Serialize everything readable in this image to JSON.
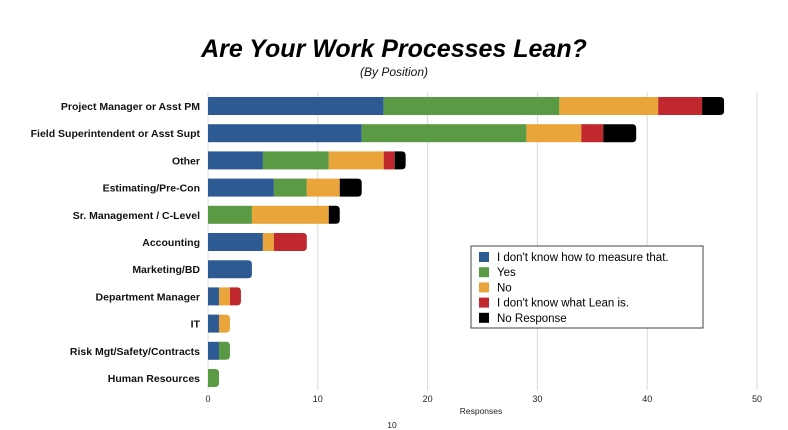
{
  "chart_data": {
    "type": "bar",
    "orientation": "horizontal",
    "stacked": true,
    "title": "Are Your Work Processes Lean?",
    "subtitle": "(By Position)",
    "xlabel": "Responses",
    "ylabel": "",
    "footnote": "10",
    "xlim": [
      0,
      50
    ],
    "xticks": [
      0,
      10,
      20,
      30,
      40,
      50
    ],
    "grid": true,
    "legend_position": "right",
    "categories": [
      "Project Manager or Asst PM",
      "Field Superintendent or Asst Supt",
      "Other",
      "Estimating/Pre-Con",
      "Sr. Management / C-Level",
      "Accounting",
      "Marketing/BD",
      "Department Manager",
      "IT",
      "Risk Mgt/Safety/Contracts",
      "Human Resources"
    ],
    "series": [
      {
        "name": "I don't know how to measure that.",
        "color": "#2e5a93",
        "values": [
          16,
          14,
          5,
          6,
          0,
          5,
          4,
          1,
          1,
          1,
          0
        ]
      },
      {
        "name": "Yes",
        "color": "#5a9a44",
        "values": [
          16,
          15,
          6,
          3,
          4,
          0,
          0,
          0,
          0,
          1,
          1
        ]
      },
      {
        "name": "No",
        "color": "#e9a53a",
        "values": [
          9,
          5,
          5,
          3,
          7,
          1,
          0,
          1,
          1,
          0,
          0
        ]
      },
      {
        "name": "I don't know what Lean is.",
        "color": "#c0282d",
        "values": [
          4,
          2,
          1,
          0,
          0,
          3,
          0,
          1,
          0,
          0,
          0
        ]
      },
      {
        "name": "No Response",
        "color": "#000000",
        "values": [
          2,
          3,
          1,
          2,
          1,
          0,
          0,
          0,
          0,
          0,
          0
        ]
      }
    ]
  }
}
